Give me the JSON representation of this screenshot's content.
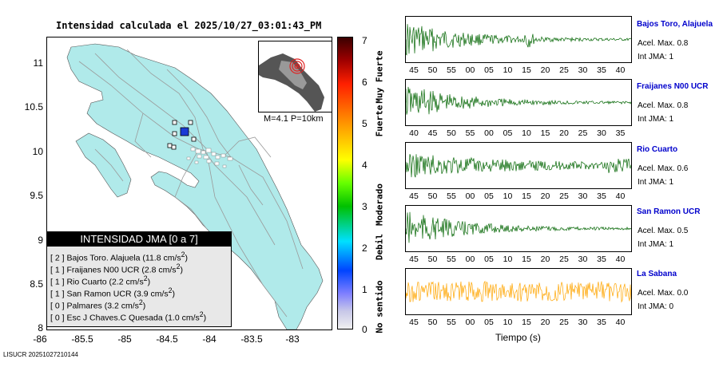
{
  "title": "Intensidad calculada el 2025/10/27_03:01:43_PM",
  "map": {
    "y_ticks": [
      "11",
      "10.5",
      "10",
      "9.5",
      "9",
      "8.5",
      "8"
    ],
    "x_ticks": [
      "-86",
      "-85.5",
      "-85",
      "-84.5",
      "-84",
      "-83.5",
      "-83"
    ],
    "land_color": "#b0eaea",
    "inset_label": "M=4.1 P=10km"
  },
  "legend": {
    "header": "INTENSIDAD JMA [0 a 7]",
    "rows": [
      {
        "level": "[ 2 ]",
        "text": "Bajos Toro. Alajuela (11.8 cm/s",
        "sup": "2",
        "end": ")"
      },
      {
        "level": "[ 1 ]",
        "text": "Fraijanes N00 UCR (2.8 cm/s",
        "sup": "2",
        "end": ")"
      },
      {
        "level": "[ 1 ]",
        "text": "Rio Cuarto (2.2 cm/s",
        "sup": "2",
        "end": ")"
      },
      {
        "level": "[ 1 ]",
        "text": "San Ramon UCR (3.9 cm/s",
        "sup": "2",
        "end": ")"
      },
      {
        "level": "[ 0 ]",
        "text": "Palmares (3.2 cm/s",
        "sup": "2",
        "end": ")"
      },
      {
        "level": "[ 0 ]",
        "text": "Esc J Chaves.C Quesada (1.0 cm/s",
        "sup": "2",
        "end": ")"
      }
    ]
  },
  "colorbar": {
    "ticks": [
      "7",
      "6",
      "5",
      "4",
      "3",
      "2",
      "1",
      "0"
    ],
    "words": [
      "Muy Fuerte",
      "Fuerte",
      "Moderado",
      "Debil",
      "No sentido"
    ]
  },
  "stations": [
    {
      "name": "Bajos Toro, Alajuela",
      "accel": "Acel. Max. 0.8",
      "jma": "Int JMA: 1",
      "color": "#006400",
      "ticks": [
        "45",
        "50",
        "55",
        "00",
        "05",
        "10",
        "15",
        "20",
        "25",
        "30",
        "35",
        "40"
      ]
    },
    {
      "name": "Fraijanes N00 UCR",
      "accel": "Acel. Max. 0.8",
      "jma": "Int JMA: 1",
      "color": "#006400",
      "ticks": [
        "40",
        "45",
        "50",
        "55",
        "00",
        "05",
        "10",
        "15",
        "20",
        "25",
        "30",
        "35"
      ]
    },
    {
      "name": "Rio Cuarto",
      "accel": "Acel. Max. 0.6",
      "jma": "Int JMA: 1",
      "color": "#006400",
      "ticks": [
        "45",
        "50",
        "55",
        "00",
        "05",
        "10",
        "15",
        "20",
        "25",
        "30",
        "35",
        "40"
      ]
    },
    {
      "name": "San Ramon UCR",
      "accel": "Acel. Max. 0.5",
      "jma": "Int JMA: 1",
      "color": "#006400",
      "ticks": [
        "45",
        "50",
        "55",
        "00",
        "05",
        "10",
        "15",
        "20",
        "25",
        "30",
        "35",
        "40"
      ]
    },
    {
      "name": "La Sabana",
      "accel": "Acel. Max. 0.0",
      "jma": "Int JMA: 0",
      "color": "#ffa500",
      "ticks": [
        "45",
        "50",
        "55",
        "00",
        "05",
        "10",
        "15",
        "20",
        "25",
        "30",
        "35",
        "40"
      ]
    }
  ],
  "xlabel": "Tiempo (s)",
  "footer": "LISUCR 20251027210144"
}
